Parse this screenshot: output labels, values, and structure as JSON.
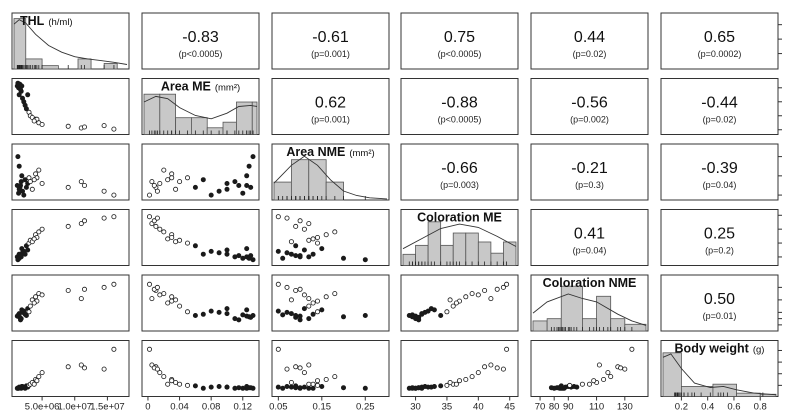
{
  "chart_data": {
    "type": "scatter",
    "variables": [
      {
        "label": "THL",
        "unit": "(h/ml)"
      },
      {
        "label": "Area ME",
        "unit": "(mm²)"
      },
      {
        "label": "Area NME",
        "unit": "(mm²)"
      },
      {
        "label": "Coloration ME",
        "unit": ""
      },
      {
        "label": "Coloration NME",
        "unit": ""
      },
      {
        "label": "Body weight",
        "unit": "(g)"
      }
    ],
    "axes": [
      {
        "lim": [
          700000,
          18000000
        ],
        "ticks": [
          5000000,
          10000000,
          15000000
        ],
        "tick_labels": [
          "5.0e+06",
          "1.0e+07",
          "1.5e+07"
        ]
      },
      {
        "lim": [
          -0.005,
          0.138
        ],
        "ticks": [
          0,
          0.04,
          0.08,
          0.12
        ],
        "tick_labels": [
          "0",
          "0.04",
          "0.08",
          "0.12"
        ]
      },
      {
        "lim": [
          0.04,
          0.3
        ],
        "ticks": [
          0.05,
          0.15,
          0.25
        ],
        "tick_labels": [
          "0.05",
          "0.15",
          "0.25"
        ]
      },
      {
        "lim": [
          28,
          46
        ],
        "ticks": [
          30,
          35,
          40,
          45
        ],
        "tick_labels": [
          "30",
          "35",
          "40",
          "45"
        ]
      },
      {
        "lim": [
          65,
          145
        ],
        "ticks": [
          70,
          80,
          90,
          110,
          130
        ],
        "tick_labels": [
          "70",
          "80",
          "90",
          "110",
          "130"
        ]
      },
      {
        "lim": [
          0.06,
          0.92
        ],
        "ticks": [
          0.2,
          0.4,
          0.6,
          0.8
        ],
        "tick_labels": [
          "0.2",
          "0.4",
          "0.6",
          "0.8"
        ]
      }
    ],
    "correlations": [
      {
        "row": 0,
        "col": 1,
        "r": "-0.83",
        "p": "(p<0.0005)"
      },
      {
        "row": 0,
        "col": 2,
        "r": "-0.61",
        "p": "(p=0.001)"
      },
      {
        "row": 0,
        "col": 3,
        "r": "0.75",
        "p": "(p<0.0005)"
      },
      {
        "row": 0,
        "col": 4,
        "r": "0.44",
        "p": "(p=0.02)"
      },
      {
        "row": 0,
        "col": 5,
        "r": "0.65",
        "p": "(p=0.0002)"
      },
      {
        "row": 1,
        "col": 2,
        "r": "0.62",
        "p": "(p=0.001)"
      },
      {
        "row": 1,
        "col": 3,
        "r": "-0.88",
        "p": "(p<0.0005)"
      },
      {
        "row": 1,
        "col": 4,
        "r": "-0.56",
        "p": "(p=0.002)"
      },
      {
        "row": 1,
        "col": 5,
        "r": "-0.44",
        "p": "(p=0.02)"
      },
      {
        "row": 2,
        "col": 3,
        "r": "-0.66",
        "p": "(p=0.003)"
      },
      {
        "row": 2,
        "col": 4,
        "r": "-0.21",
        "p": "(p=0.3)"
      },
      {
        "row": 2,
        "col": 5,
        "r": "-0.39",
        "p": "(p=0.04)"
      },
      {
        "row": 3,
        "col": 4,
        "r": "0.41",
        "p": "(p=0.04)"
      },
      {
        "row": 3,
        "col": 5,
        "r": "0.25",
        "p": "(p=0.2)"
      },
      {
        "row": 4,
        "col": 5,
        "r": "0.50",
        "p": "(p=0.01)"
      }
    ],
    "histograms": [
      {
        "bins": [
          [
            700000,
            2500000,
            0.9
          ],
          [
            2500000,
            5000000,
            0.18
          ],
          [
            5000000,
            7500000,
            0.06
          ],
          [
            7500000,
            10500000,
            0.0
          ],
          [
            10500000,
            12500000,
            0.18
          ],
          [
            12500000,
            14500000,
            0.0
          ],
          [
            14500000,
            16500000,
            0.1
          ]
        ],
        "density": [
          [
            700000,
            0.8
          ],
          [
            1500000,
            0.88
          ],
          [
            2500000,
            0.82
          ],
          [
            4000000,
            0.62
          ],
          [
            6000000,
            0.42
          ],
          [
            8000000,
            0.3
          ],
          [
            10000000,
            0.22
          ],
          [
            12000000,
            0.18
          ],
          [
            14000000,
            0.15
          ],
          [
            16000000,
            0.12
          ],
          [
            18000000,
            0.08
          ]
        ]
      },
      {
        "bins": [
          [
            -0.005,
            0.015,
            0.72
          ],
          [
            0.015,
            0.035,
            0.72
          ],
          [
            0.035,
            0.055,
            0.3
          ],
          [
            0.055,
            0.075,
            0.3
          ],
          [
            0.075,
            0.095,
            0.12
          ],
          [
            0.095,
            0.112,
            0.22
          ],
          [
            0.112,
            0.132,
            0.58
          ],
          [
            0.132,
            0.138,
            0.58
          ]
        ],
        "density": [
          [
            -0.005,
            0.58
          ],
          [
            0.01,
            0.68
          ],
          [
            0.025,
            0.64
          ],
          [
            0.04,
            0.48
          ],
          [
            0.06,
            0.34
          ],
          [
            0.08,
            0.28
          ],
          [
            0.1,
            0.38
          ],
          [
            0.115,
            0.5
          ],
          [
            0.13,
            0.52
          ],
          [
            0.138,
            0.5
          ]
        ]
      },
      {
        "bins": [
          [
            0.04,
            0.08,
            0.32
          ],
          [
            0.08,
            0.12,
            0.72
          ],
          [
            0.12,
            0.16,
            0.72
          ],
          [
            0.16,
            0.2,
            0.32
          ],
          [
            0.2,
            0.24,
            0.0
          ],
          [
            0.24,
            0.3,
            0.0
          ]
        ],
        "density": [
          [
            0.04,
            0.3
          ],
          [
            0.08,
            0.62
          ],
          [
            0.11,
            0.78
          ],
          [
            0.14,
            0.62
          ],
          [
            0.17,
            0.36
          ],
          [
            0.2,
            0.16
          ],
          [
            0.23,
            0.08
          ],
          [
            0.26,
            0.04
          ],
          [
            0.3,
            0.02
          ]
        ]
      },
      {
        "bins": [
          [
            28,
            30,
            0.2
          ],
          [
            30,
            32,
            0.36
          ],
          [
            32,
            34,
            0.78
          ],
          [
            34,
            36,
            0.36
          ],
          [
            36,
            38,
            0.58
          ],
          [
            38,
            40,
            0.58
          ],
          [
            40,
            42,
            0.42
          ],
          [
            42,
            44,
            0.22
          ],
          [
            44,
            46,
            0.42
          ]
        ],
        "density": [
          [
            28,
            0.3
          ],
          [
            31,
            0.48
          ],
          [
            34,
            0.66
          ],
          [
            37,
            0.74
          ],
          [
            40,
            0.68
          ],
          [
            43,
            0.52
          ],
          [
            46,
            0.34
          ]
        ]
      },
      {
        "bins": [
          [
            65,
            75,
            0.18
          ],
          [
            75,
            85,
            0.22
          ],
          [
            85,
            100,
            0.8
          ],
          [
            100,
            110,
            0.22
          ],
          [
            110,
            120,
            0.62
          ],
          [
            120,
            130,
            0.22
          ],
          [
            130,
            145,
            0.12
          ]
        ],
        "density": [
          [
            65,
            0.32
          ],
          [
            75,
            0.52
          ],
          [
            90,
            0.66
          ],
          [
            100,
            0.58
          ],
          [
            110,
            0.52
          ],
          [
            125,
            0.3
          ],
          [
            135,
            0.18
          ],
          [
            145,
            0.1
          ]
        ]
      },
      {
        "bins": [
          [
            0.06,
            0.2,
            0.78
          ],
          [
            0.2,
            0.44,
            0.18
          ],
          [
            0.44,
            0.62,
            0.22
          ],
          [
            0.62,
            0.8,
            0.06
          ],
          [
            0.8,
            0.92,
            0.04
          ]
        ],
        "density": [
          [
            0.06,
            0.7
          ],
          [
            0.12,
            0.76
          ],
          [
            0.2,
            0.5
          ],
          [
            0.3,
            0.24
          ],
          [
            0.42,
            0.16
          ],
          [
            0.52,
            0.18
          ],
          [
            0.62,
            0.12
          ],
          [
            0.75,
            0.06
          ],
          [
            0.92,
            0.03
          ]
        ]
      }
    ],
    "points": [
      [
        1200000,
        0.125,
        0.1,
        30,
        84,
        0.15,
        "filled"
      ],
      [
        1400000,
        0.12,
        0.06,
        29.5,
        86,
        0.15,
        "filled"
      ],
      [
        1600000,
        0.13,
        0.09,
        30.5,
        82,
        0.16,
        "filled"
      ],
      [
        1500000,
        0.1,
        0.08,
        31,
        88,
        0.17,
        "filled"
      ],
      [
        1800000,
        0.11,
        0.12,
        30,
        80,
        0.15,
        "filled"
      ],
      [
        2000000,
        0.09,
        0.07,
        31.5,
        90,
        0.18,
        "filled"
      ],
      [
        1300000,
        0.133,
        0.25,
        29,
        85,
        0.15,
        "filled"
      ],
      [
        2200000,
        0.08,
        0.05,
        32,
        92,
        0.17,
        "filled"
      ],
      [
        1700000,
        0.115,
        0.1,
        30.5,
        78,
        0.16,
        "filled"
      ],
      [
        2400000,
        0.07,
        0.13,
        31,
        87,
        0.15,
        "filled"
      ],
      [
        1900000,
        0.125,
        0.15,
        33,
        94,
        0.18,
        "filled"
      ],
      [
        2600000,
        0.06,
        0.09,
        34,
        85,
        0.19,
        "filled"
      ],
      [
        1500000,
        0.128,
        0.2,
        29.5,
        83,
        0.16,
        "filled"
      ],
      [
        2800000,
        0.1,
        0.11,
        32.5,
        96,
        0.17,
        "filled"
      ],
      [
        3000000,
        0.05,
        0.14,
        35,
        91,
        0.2,
        "open"
      ],
      [
        3200000,
        0.04,
        0.12,
        36,
        100,
        0.22,
        "open"
      ],
      [
        3500000,
        0.035,
        0.08,
        35.5,
        110,
        0.25,
        "open"
      ],
      [
        4000000,
        0.03,
        0.16,
        38,
        115,
        0.3,
        "open"
      ],
      [
        4200000,
        0.03,
        0.14,
        37,
        108,
        0.28,
        "open"
      ],
      [
        4500000,
        0.02,
        0.18,
        39,
        120,
        0.35,
        "open"
      ],
      [
        3800000,
        0.025,
        0.13,
        36.5,
        105,
        0.22,
        "open"
      ],
      [
        5000000,
        0.015,
        0.11,
        40,
        118,
        0.42,
        "open"
      ],
      [
        9000000,
        0.01,
        0.09,
        41,
        125,
        0.52,
        "open"
      ],
      [
        11000000,
        0.005,
        0.12,
        42,
        112,
        0.55,
        "open"
      ],
      [
        11500000,
        0.008,
        0.1,
        43,
        127,
        0.5,
        "open"
      ],
      [
        14500000,
        0.012,
        0.07,
        44,
        130,
        0.48,
        "open"
      ],
      [
        16000000,
        0.002,
        0.05,
        44.5,
        135,
        0.82,
        "open"
      ]
    ]
  }
}
